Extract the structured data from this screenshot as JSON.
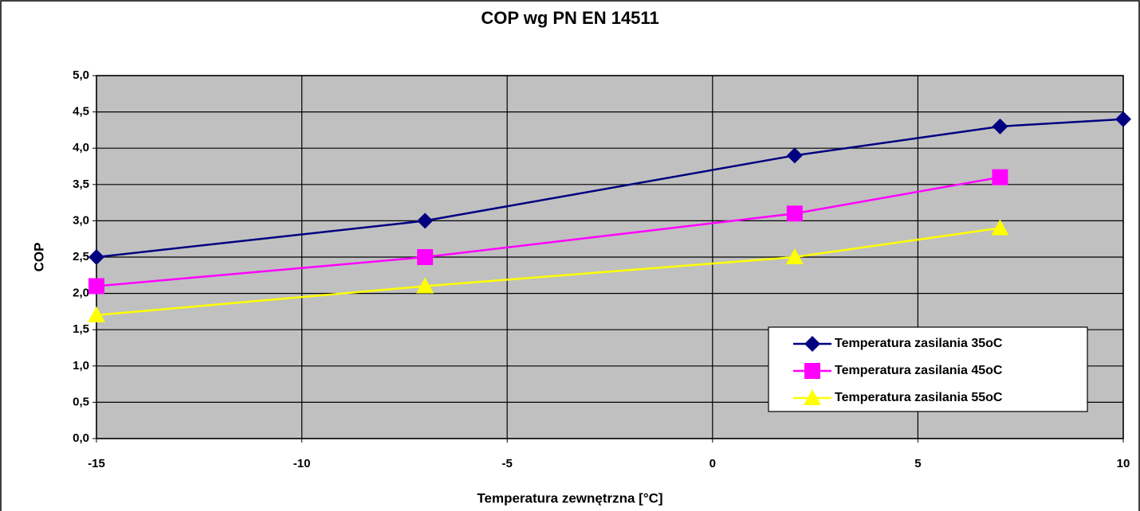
{
  "chart_data": {
    "type": "line",
    "title": "COP wg PN EN 14511",
    "xlabel": "Temperatura zewnętrzna [°C]",
    "ylabel": "COP",
    "xlim": [
      -15,
      10
    ],
    "xticks": [
      -15,
      -10,
      -5,
      0,
      5,
      10
    ],
    "ylim": [
      0,
      5
    ],
    "yticks": [
      {
        "value": 0,
        "label": "0,0"
      },
      {
        "value": 0.5,
        "label": "0,5"
      },
      {
        "value": 1,
        "label": "1,0"
      },
      {
        "value": 1.5,
        "label": "1,5"
      },
      {
        "value": 2,
        "label": "2,0"
      },
      {
        "value": 2.5,
        "label": "2,5"
      },
      {
        "value": 3,
        "label": "3,0"
      },
      {
        "value": 3.5,
        "label": "3,5"
      },
      {
        "value": 4,
        "label": "4,0"
      },
      {
        "value": 4.5,
        "label": "4,5"
      },
      {
        "value": 5,
        "label": "5,0"
      }
    ],
    "grid": true,
    "legend": "lower right",
    "background": "#c0c0c0",
    "series": [
      {
        "name": "Temperatura zasilania 35oC",
        "color": "#000080",
        "marker": "diamond",
        "x": [
          -15,
          -7,
          2,
          7,
          10
        ],
        "values": [
          2.5,
          3.0,
          3.9,
          4.3,
          4.4
        ]
      },
      {
        "name": "Temperatura zasilania 45oC",
        "color": "#ff00ff",
        "marker": "square",
        "x": [
          -15,
          -7,
          2,
          7
        ],
        "values": [
          2.1,
          2.5,
          3.1,
          3.6
        ]
      },
      {
        "name": "Temperatura zasilania 55oC",
        "color": "#ffff00",
        "marker": "triangle",
        "x": [
          -15,
          -7,
          2,
          7
        ],
        "values": [
          1.7,
          2.1,
          2.5,
          2.9
        ]
      }
    ]
  }
}
